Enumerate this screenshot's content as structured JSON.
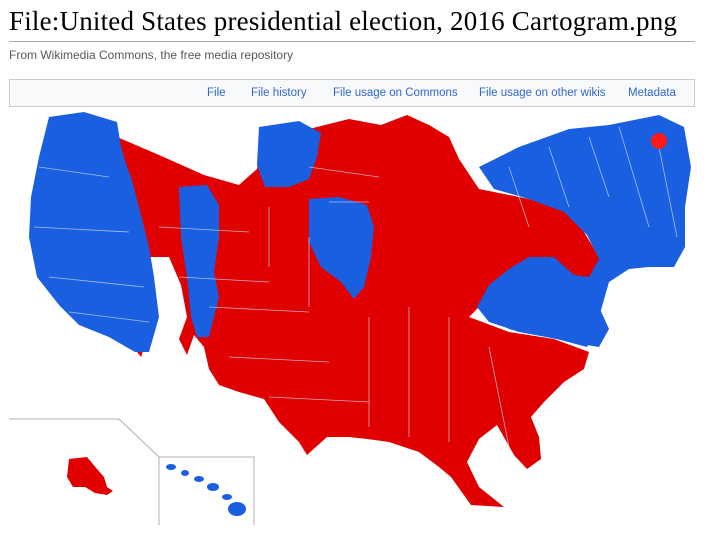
{
  "page": {
    "title": "File:United States presidential election, 2016 Cartogram.png",
    "subtitle": "From Wikimedia Commons, the free media repository"
  },
  "tabs": [
    {
      "label": "File"
    },
    {
      "label": "File history"
    },
    {
      "label": "File usage on Commons"
    },
    {
      "label": "File usage on other wikis"
    },
    {
      "label": "Metadata"
    }
  ],
  "map": {
    "colors": {
      "republican": "#e00000",
      "democrat": "#1a5fe0",
      "dc_marker": "#ff1a1a",
      "borders": "#c7d6f5",
      "inset_lines": "#b0b0b0"
    }
  }
}
